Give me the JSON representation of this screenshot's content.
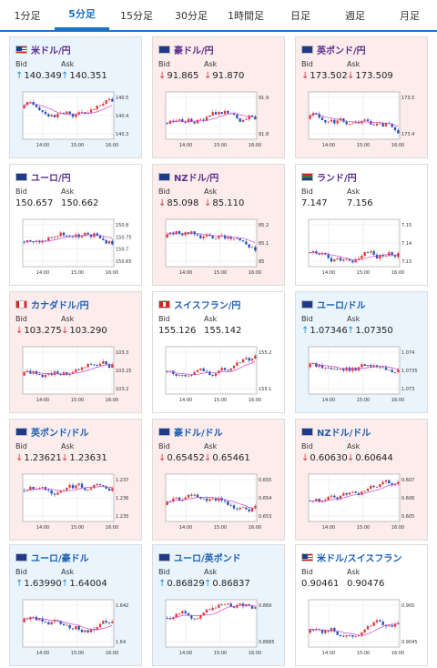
{
  "tabs": [
    {
      "label": "1分足",
      "active": false
    },
    {
      "label": "5分足",
      "active": true
    },
    {
      "label": "15分足",
      "active": false
    },
    {
      "label": "30分足",
      "active": false
    },
    {
      "label": "1時間足",
      "active": false
    },
    {
      "label": "日足",
      "active": false
    },
    {
      "label": "週足",
      "active": false
    },
    {
      "label": "月足",
      "active": false
    }
  ],
  "bid_label": "Bid",
  "ask_label": "Ask",
  "colors": {
    "up": "#1f8fd6",
    "down": "#e03a3a",
    "candle_up": "#e03a3a",
    "candle_down": "#2451b7",
    "ma": "#cc44cc"
  },
  "pairs": [
    {
      "name": "米ドル/円",
      "flag": "us-flag",
      "dir": "up",
      "bid": "140.349",
      "ask": "140.351",
      "bid_arrow": "up",
      "ask_arrow": "up",
      "y_ticks": [
        "140.5",
        "140.4",
        "140.3"
      ],
      "x_ticks": [
        "14:00",
        "15:00",
        "16:00"
      ]
    },
    {
      "name": "豪ドル/円",
      "flag": "au-flag",
      "dir": "down",
      "bid": "91.865",
      "ask": "91.870",
      "bid_arrow": "down",
      "ask_arrow": "down",
      "y_ticks": [
        "91.9",
        "91.8"
      ],
      "x_ticks": [
        "14:00",
        "15:00",
        "16:00"
      ]
    },
    {
      "name": "英ポンド/円",
      "flag": "gb-flag",
      "dir": "down",
      "bid": "173.502",
      "ask": "173.509",
      "bid_arrow": "down",
      "ask_arrow": "down",
      "y_ticks": [
        "173.5",
        "173.4"
      ],
      "x_ticks": [
        "14:00",
        "15:00",
        "16:00"
      ]
    },
    {
      "name": "ユーロ/円",
      "flag": "eu-flag",
      "dir": "flat",
      "bid": "150.657",
      "ask": "150.662",
      "bid_arrow": "",
      "ask_arrow": "",
      "y_ticks": [
        "150.8",
        "150.75",
        "150.7",
        "150.65"
      ],
      "x_ticks": [
        "14:00",
        "15:00",
        "16:00"
      ]
    },
    {
      "name": "NZドル/円",
      "flag": "nz-flag",
      "dir": "down",
      "bid": "85.098",
      "ask": "85.110",
      "bid_arrow": "down",
      "ask_arrow": "down",
      "y_ticks": [
        "85.2",
        "85.1",
        "85"
      ],
      "x_ticks": [
        "14:00",
        "15:00",
        "16:00"
      ]
    },
    {
      "name": "ランド/円",
      "flag": "za-flag",
      "dir": "flat",
      "bid": "7.147",
      "ask": "7.156",
      "bid_arrow": "",
      "ask_arrow": "",
      "y_ticks": [
        "7.15",
        "7.14",
        "7.13"
      ],
      "x_ticks": [
        "14:00",
        "15:00",
        "16:00"
      ]
    },
    {
      "name": "カナダドル/円",
      "flag": "ca-flag",
      "dir": "down",
      "bid": "103.275",
      "ask": "103.290",
      "bid_arrow": "down",
      "ask_arrow": "down",
      "y_ticks": [
        "103.3",
        "103.25",
        "103.2"
      ],
      "x_ticks": [
        "14:00",
        "15:00",
        "16:00"
      ]
    },
    {
      "name": "スイスフラン/円",
      "flag": "ch-flag",
      "dir": "flat",
      "bid": "155.126",
      "ask": "155.142",
      "bid_arrow": "",
      "ask_arrow": "",
      "y_ticks": [
        "155.2",
        "155.1"
      ],
      "x_ticks": [
        "14:00",
        "15:00",
        "16:00"
      ]
    },
    {
      "name": "ユーロ/ドル",
      "flag": "eu-us-flag",
      "dir": "up",
      "bid": "1.07346",
      "ask": "1.07350",
      "bid_arrow": "up",
      "ask_arrow": "up",
      "y_ticks": [
        "1.074",
        "1.0735",
        "1.073"
      ],
      "x_ticks": [
        "14:00",
        "15:00",
        "16:00"
      ]
    },
    {
      "name": "英ポンド/ドル",
      "flag": "gb-us-flag",
      "dir": "down",
      "bid": "1.23621",
      "ask": "1.23631",
      "bid_arrow": "down",
      "ask_arrow": "down",
      "y_ticks": [
        "1.237",
        "1.236",
        "1.235"
      ],
      "x_ticks": [
        "14:00",
        "15:00",
        "16:00"
      ]
    },
    {
      "name": "豪ドル/ドル",
      "flag": "au-us-flag",
      "dir": "down",
      "bid": "0.65452",
      "ask": "0.65461",
      "bid_arrow": "down",
      "ask_arrow": "down",
      "y_ticks": [
        "0.655",
        "0.654",
        "0.653"
      ],
      "x_ticks": [
        "14:00",
        "15:00",
        "16:00"
      ]
    },
    {
      "name": "NZドル/ドル",
      "flag": "nz-us-flag",
      "dir": "down",
      "bid": "0.60630",
      "ask": "0.60644",
      "bid_arrow": "down",
      "ask_arrow": "down",
      "y_ticks": [
        "0.607",
        "0.606",
        "0.605"
      ],
      "x_ticks": [
        "14:00",
        "15:00",
        "16:00"
      ]
    },
    {
      "name": "ユーロ/豪ドル",
      "flag": "eu-au-flag",
      "dir": "up",
      "bid": "1.63990",
      "ask": "1.64004",
      "bid_arrow": "up",
      "ask_arrow": "up",
      "y_ticks": [
        "1.642",
        "1.64"
      ],
      "x_ticks": [
        "14:00",
        "15:00",
        "16:00"
      ]
    },
    {
      "name": "ユーロ/英ポンド",
      "flag": "eu-gb-flag",
      "dir": "up",
      "bid": "0.86829",
      "ask": "0.86837",
      "bid_arrow": "up",
      "ask_arrow": "up",
      "y_ticks": [
        "0.869",
        "0.8685"
      ],
      "x_ticks": [
        "14:00",
        "15:00",
        "16:00"
      ]
    },
    {
      "name": "米ドル/スイスフラン",
      "flag": "us-ch-flag",
      "dir": "flat",
      "bid": "0.90461",
      "ask": "0.90476",
      "bid_arrow": "",
      "ask_arrow": "",
      "y_ticks": [
        "0.905",
        "0.9045"
      ],
      "x_ticks": [
        "14:00",
        "15:00",
        "16:00"
      ]
    }
  ]
}
